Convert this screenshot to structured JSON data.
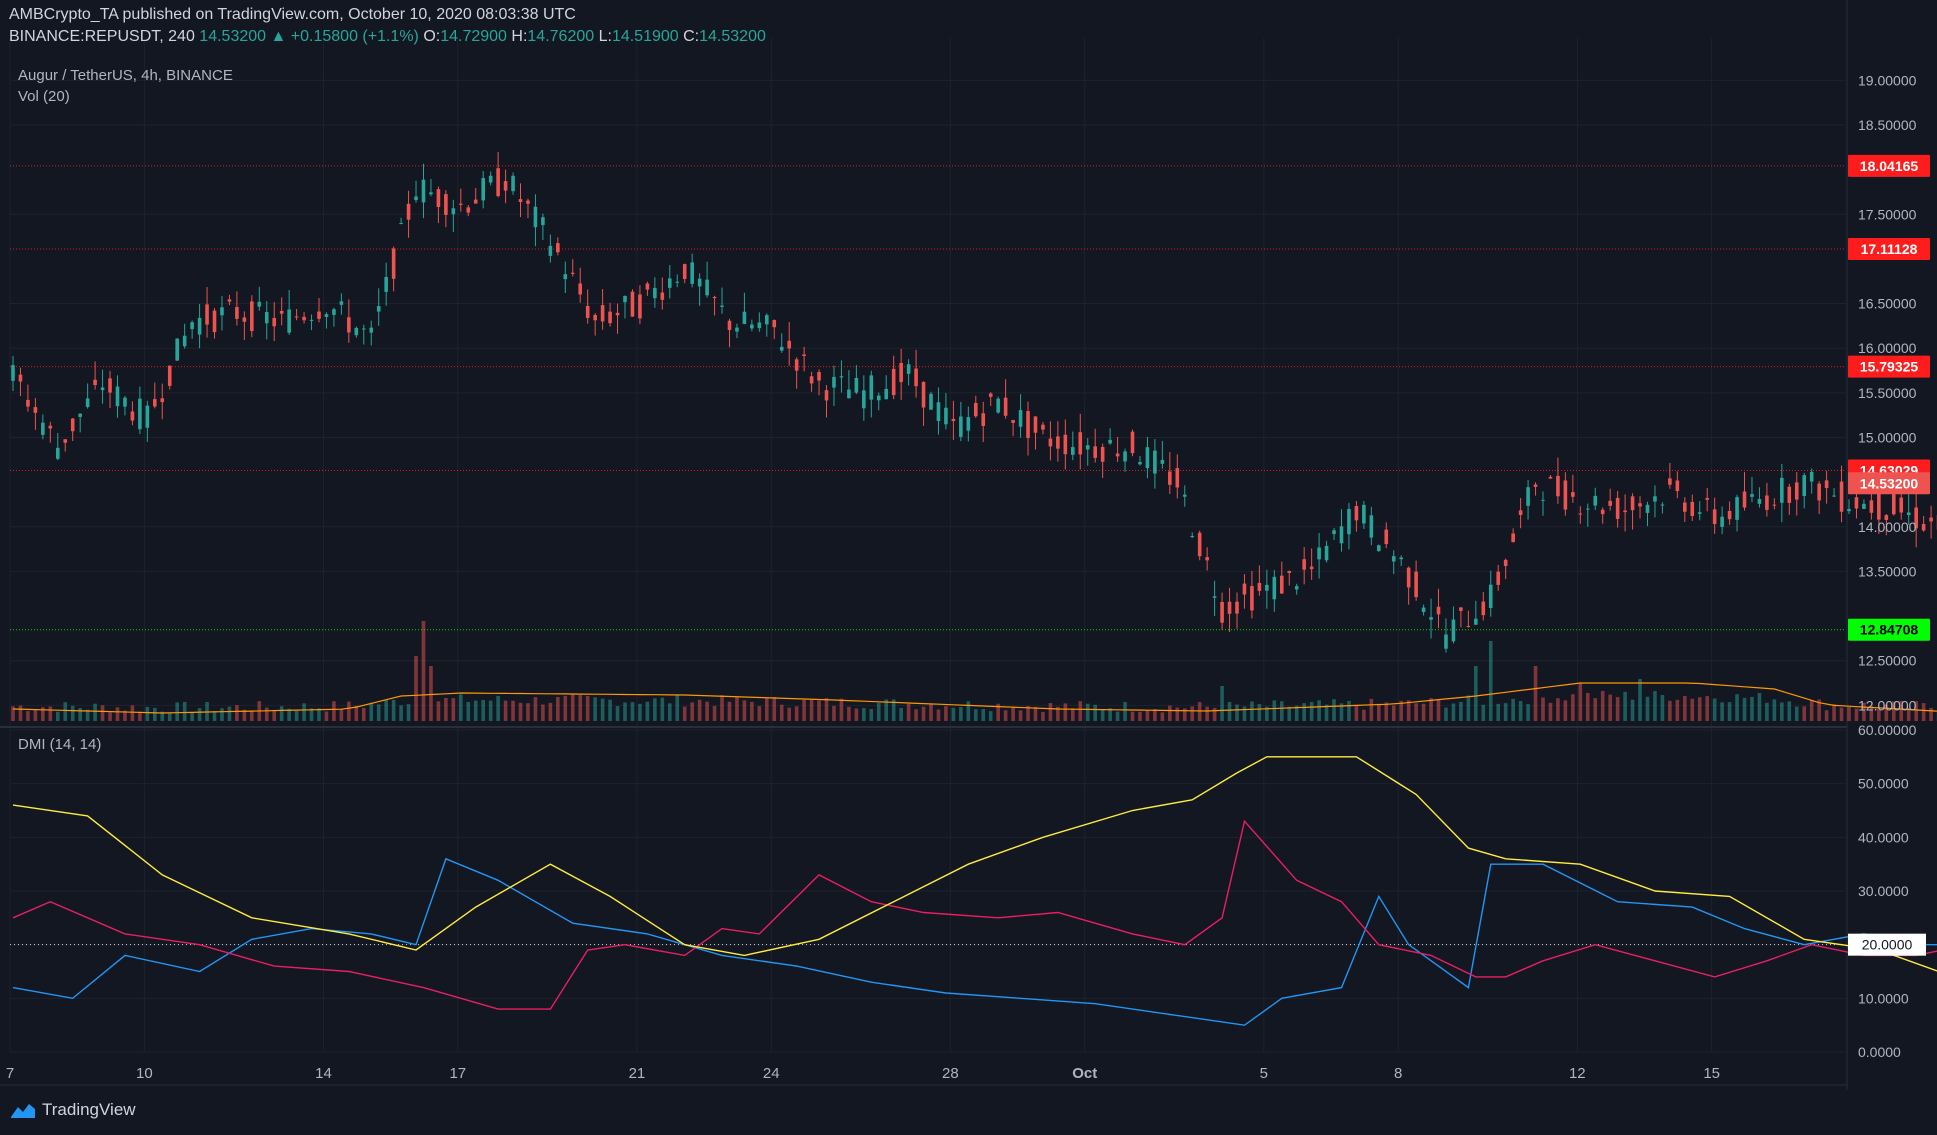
{
  "header": {
    "publisher_line": "AMBCrypto_TA published on TradingView.com, October 10, 2020 08:03:38 UTC",
    "symbol": "BINANCE:REPUSDT, 240",
    "last": "14.53200",
    "change_icon": "triangle-up-icon",
    "change": "+0.15800 (+1.1%)",
    "open_label": "O:",
    "open": "14.72900",
    "high_label": "H:",
    "high": "14.76200",
    "low_label": "L:",
    "low": "14.51900",
    "close_label": "C:",
    "close": "14.53200"
  },
  "legend": {
    "series_title": "Augur / TetherUS, 4h, BINANCE",
    "volume": "Vol (20)",
    "indicator": "DMI (14, 14)"
  },
  "brand": {
    "name": "TradingView",
    "icon": "tradingview-logo-icon"
  },
  "colors": {
    "background": "#131722",
    "up": "#26a69a",
    "down": "#ef5350",
    "resistance": "#ff1c1c",
    "support": "#00ff00",
    "di_plus": "#2196f3",
    "di_minus": "#e91e63",
    "adx": "#ffeb3b",
    "vol_ma": "#ff9800"
  },
  "chart_data": [
    {
      "type": "candlestick",
      "title": "Augur / TetherUS, 4h, BINANCE",
      "ylim": [
        11.78,
        19.25
      ],
      "price_ticks": [
        "19.00000",
        "18.50000",
        "17.50000",
        "16.50000",
        "16.00000",
        "15.50000",
        "15.00000",
        "14.00000",
        "13.50000",
        "12.50000",
        "12.00000"
      ],
      "x_ticks": [
        {
          "label": "7",
          "day": 7
        },
        {
          "label": "10",
          "day": 10
        },
        {
          "label": "14",
          "day": 14
        },
        {
          "label": "17",
          "day": 17
        },
        {
          "label": "21",
          "day": 21
        },
        {
          "label": "24",
          "day": 24
        },
        {
          "label": "28",
          "day": 28
        },
        {
          "label": "Oct",
          "day": 31
        },
        {
          "label": "5",
          "day": 35
        },
        {
          "label": "8",
          "day": 38
        },
        {
          "label": "12",
          "day": 42
        },
        {
          "label": "15",
          "day": 45
        }
      ],
      "xlim_days": [
        7,
        48.0
      ],
      "horizontal_levels": [
        {
          "label": "18.04165",
          "value": 18.04165,
          "kind": "resistance"
        },
        {
          "label": "17.11128",
          "value": 17.11128,
          "kind": "resistance"
        },
        {
          "label": "15.79325",
          "value": 15.79325,
          "kind": "resistance"
        },
        {
          "label": "14.63029",
          "value": 14.63029,
          "kind": "resistance"
        },
        {
          "label": "12.84708",
          "value": 12.84708,
          "kind": "support"
        }
      ],
      "last_price_label": "14.53200",
      "last_price": 14.532,
      "close_path": [
        [
          0,
          15.7
        ],
        [
          6,
          14.9
        ],
        [
          12,
          15.6
        ],
        [
          18,
          15.2
        ],
        [
          24,
          16.3
        ],
        [
          30,
          16.4
        ],
        [
          36,
          16.3
        ],
        [
          42,
          16.5
        ],
        [
          48,
          16.1
        ],
        [
          54,
          17.8
        ],
        [
          60,
          17.6
        ],
        [
          66,
          17.9
        ],
        [
          72,
          17.2
        ],
        [
          78,
          16.3
        ],
        [
          84,
          16.5
        ],
        [
          90,
          16.9
        ],
        [
          96,
          16.3
        ],
        [
          102,
          16.2
        ],
        [
          108,
          15.6
        ],
        [
          114,
          15.5
        ],
        [
          120,
          15.7
        ],
        [
          126,
          15.1
        ],
        [
          132,
          15.4
        ],
        [
          138,
          15.0
        ],
        [
          144,
          14.9
        ],
        [
          150,
          14.9
        ],
        [
          156,
          14.5
        ],
        [
          162,
          13.1
        ],
        [
          168,
          13.3
        ],
        [
          174,
          13.5
        ],
        [
          180,
          14.2
        ],
        [
          186,
          13.6
        ],
        [
          192,
          12.8
        ],
        [
          198,
          13.2
        ],
        [
          204,
          14.5
        ],
        [
          210,
          14.3
        ],
        [
          216,
          14.2
        ],
        [
          222,
          14.4
        ],
        [
          228,
          14.1
        ],
        [
          234,
          14.3
        ],
        [
          240,
          14.5
        ],
        [
          246,
          14.3
        ],
        [
          252,
          14.2
        ],
        [
          258,
          14.0
        ],
        [
          264,
          14.3
        ],
        [
          270,
          14.4
        ],
        [
          276,
          13.9
        ],
        [
          282,
          13.1
        ],
        [
          288,
          13.6
        ],
        [
          294,
          14.0
        ],
        [
          300,
          13.8
        ],
        [
          306,
          14.0
        ],
        [
          312,
          14.1
        ],
        [
          318,
          14.2
        ],
        [
          324,
          13.6
        ],
        [
          330,
          13.2
        ],
        [
          336,
          12.9
        ],
        [
          342,
          13.1
        ],
        [
          348,
          13.0
        ],
        [
          354,
          13.5
        ],
        [
          360,
          13.6
        ],
        [
          366,
          14.1
        ],
        [
          372,
          14.6
        ],
        [
          375,
          14.53
        ]
      ],
      "volume_ma_path": [
        [
          0,
          0.12
        ],
        [
          20,
          0.08
        ],
        [
          45,
          0.12
        ],
        [
          52,
          0.25
        ],
        [
          60,
          0.28
        ],
        [
          90,
          0.26
        ],
        [
          110,
          0.21
        ],
        [
          140,
          0.12
        ],
        [
          160,
          0.1
        ],
        [
          185,
          0.17
        ],
        [
          196,
          0.25
        ],
        [
          210,
          0.38
        ],
        [
          225,
          0.38
        ],
        [
          236,
          0.32
        ],
        [
          243,
          0.16
        ],
        [
          260,
          0.09
        ],
        [
          300,
          0.07
        ],
        [
          340,
          0.08
        ],
        [
          375,
          0.09
        ]
      ],
      "volume_spikes": [
        [
          54,
          0.65
        ],
        [
          55,
          1.0
        ],
        [
          56,
          0.55
        ],
        [
          162,
          0.35
        ],
        [
          196,
          0.55
        ],
        [
          198,
          0.8
        ],
        [
          204,
          0.55
        ],
        [
          210,
          0.38
        ],
        [
          218,
          0.42
        ]
      ]
    },
    {
      "type": "line",
      "title": "DMI (14, 14)",
      "ylim": [
        0,
        60
      ],
      "ticks": [
        "60.00000",
        "50.0000",
        "40.0000",
        "30.0000",
        "20.0000",
        "10.0000",
        "0.0000"
      ],
      "threshold_label": "20.0000",
      "threshold": 20,
      "series": [
        {
          "name": "+DI",
          "color": "#2196f3",
          "points": [
            [
              0,
              12
            ],
            [
              8,
              10
            ],
            [
              15,
              18
            ],
            [
              25,
              15
            ],
            [
              32,
              21
            ],
            [
              40,
              23
            ],
            [
              48,
              22
            ],
            [
              54,
              20
            ],
            [
              58,
              36
            ],
            [
              65,
              32
            ],
            [
              75,
              24
            ],
            [
              85,
              22
            ],
            [
              95,
              18
            ],
            [
              105,
              16
            ],
            [
              115,
              13
            ],
            [
              125,
              11
            ],
            [
              135,
              10
            ],
            [
              145,
              9
            ],
            [
              155,
              7
            ],
            [
              165,
              5
            ],
            [
              170,
              10
            ],
            [
              178,
              12
            ],
            [
              183,
              29
            ],
            [
              187,
              20
            ],
            [
              195,
              12
            ],
            [
              198,
              35
            ],
            [
              205,
              35
            ],
            [
              215,
              28
            ],
            [
              225,
              27
            ],
            [
              232,
              23
            ],
            [
              240,
              20
            ],
            [
              248,
              22
            ],
            [
              255,
              20
            ],
            [
              262,
              20
            ],
            [
              270,
              22
            ],
            [
              275,
              26
            ],
            [
              280,
              19
            ],
            [
              285,
              20
            ],
            [
              290,
              20
            ],
            [
              298,
              23
            ],
            [
              305,
              20
            ],
            [
              312,
              26
            ],
            [
              320,
              25
            ],
            [
              327,
              30
            ],
            [
              331,
              24
            ],
            [
              337,
              21
            ],
            [
              342,
              23
            ],
            [
              346,
              26
            ],
            [
              350,
              28
            ],
            [
              355,
              28
            ],
            [
              360,
              30
            ],
            [
              364,
              30
            ],
            [
              368,
              35
            ],
            [
              372,
              38
            ],
            [
              375,
              36
            ]
          ]
        },
        {
          "name": "-DI",
          "color": "#e91e63",
          "points": [
            [
              0,
              25
            ],
            [
              5,
              28
            ],
            [
              15,
              22
            ],
            [
              25,
              20
            ],
            [
              35,
              16
            ],
            [
              45,
              15
            ],
            [
              55,
              12
            ],
            [
              65,
              8
            ],
            [
              72,
              8
            ],
            [
              77,
              19
            ],
            [
              82,
              20
            ],
            [
              90,
              18
            ],
            [
              95,
              23
            ],
            [
              100,
              22
            ],
            [
              108,
              33
            ],
            [
              115,
              28
            ],
            [
              122,
              26
            ],
            [
              132,
              25
            ],
            [
              140,
              26
            ],
            [
              150,
              22
            ],
            [
              157,
              20
            ],
            [
              162,
              25
            ],
            [
              165,
              43
            ],
            [
              172,
              32
            ],
            [
              178,
              28
            ],
            [
              183,
              20
            ],
            [
              190,
              18
            ],
            [
              196,
              14
            ],
            [
              200,
              14
            ],
            [
              205,
              17
            ],
            [
              212,
              20
            ],
            [
              220,
              17
            ],
            [
              228,
              14
            ],
            [
              235,
              17
            ],
            [
              241,
              20
            ],
            [
              248,
              18
            ],
            [
              255,
              18
            ],
            [
              262,
              20
            ],
            [
              270,
              18
            ],
            [
              276,
              22
            ],
            [
              282,
              39
            ],
            [
              288,
              29
            ],
            [
              295,
              26
            ],
            [
              302,
              22
            ],
            [
              310,
              21
            ],
            [
              318,
              22
            ],
            [
              326,
              19
            ],
            [
              332,
              18
            ],
            [
              337,
              28
            ],
            [
              342,
              32
            ],
            [
              348,
              26
            ],
            [
              355,
              20
            ],
            [
              362,
              22
            ],
            [
              366,
              20
            ],
            [
              370,
              20
            ],
            [
              375,
              16
            ]
          ]
        },
        {
          "name": "ADX",
          "color": "#ffeb3b",
          "points": [
            [
              0,
              46
            ],
            [
              10,
              44
            ],
            [
              20,
              33
            ],
            [
              32,
              25
            ],
            [
              45,
              22
            ],
            [
              54,
              19
            ],
            [
              62,
              27
            ],
            [
              72,
              35
            ],
            [
              80,
              29
            ],
            [
              90,
              20
            ],
            [
              98,
              18
            ],
            [
              108,
              21
            ],
            [
              118,
              28
            ],
            [
              128,
              35
            ],
            [
              138,
              40
            ],
            [
              150,
              45
            ],
            [
              158,
              47
            ],
            [
              164,
              52
            ],
            [
              168,
              55
            ],
            [
              180,
              55
            ],
            [
              188,
              48
            ],
            [
              195,
              38
            ],
            [
              200,
              36
            ],
            [
              210,
              35
            ],
            [
              220,
              30
            ],
            [
              230,
              29
            ],
            [
              240,
              21
            ],
            [
              250,
              19
            ],
            [
              258,
              15
            ],
            [
              268,
              13
            ],
            [
              278,
              15
            ],
            [
              288,
              17
            ],
            [
              298,
              18
            ],
            [
              310,
              13
            ],
            [
              320,
              13
            ],
            [
              330,
              18
            ],
            [
              340,
              19
            ],
            [
              350,
              15
            ],
            [
              360,
              15
            ],
            [
              368,
              16
            ],
            [
              375,
              19
            ]
          ]
        }
      ]
    }
  ]
}
